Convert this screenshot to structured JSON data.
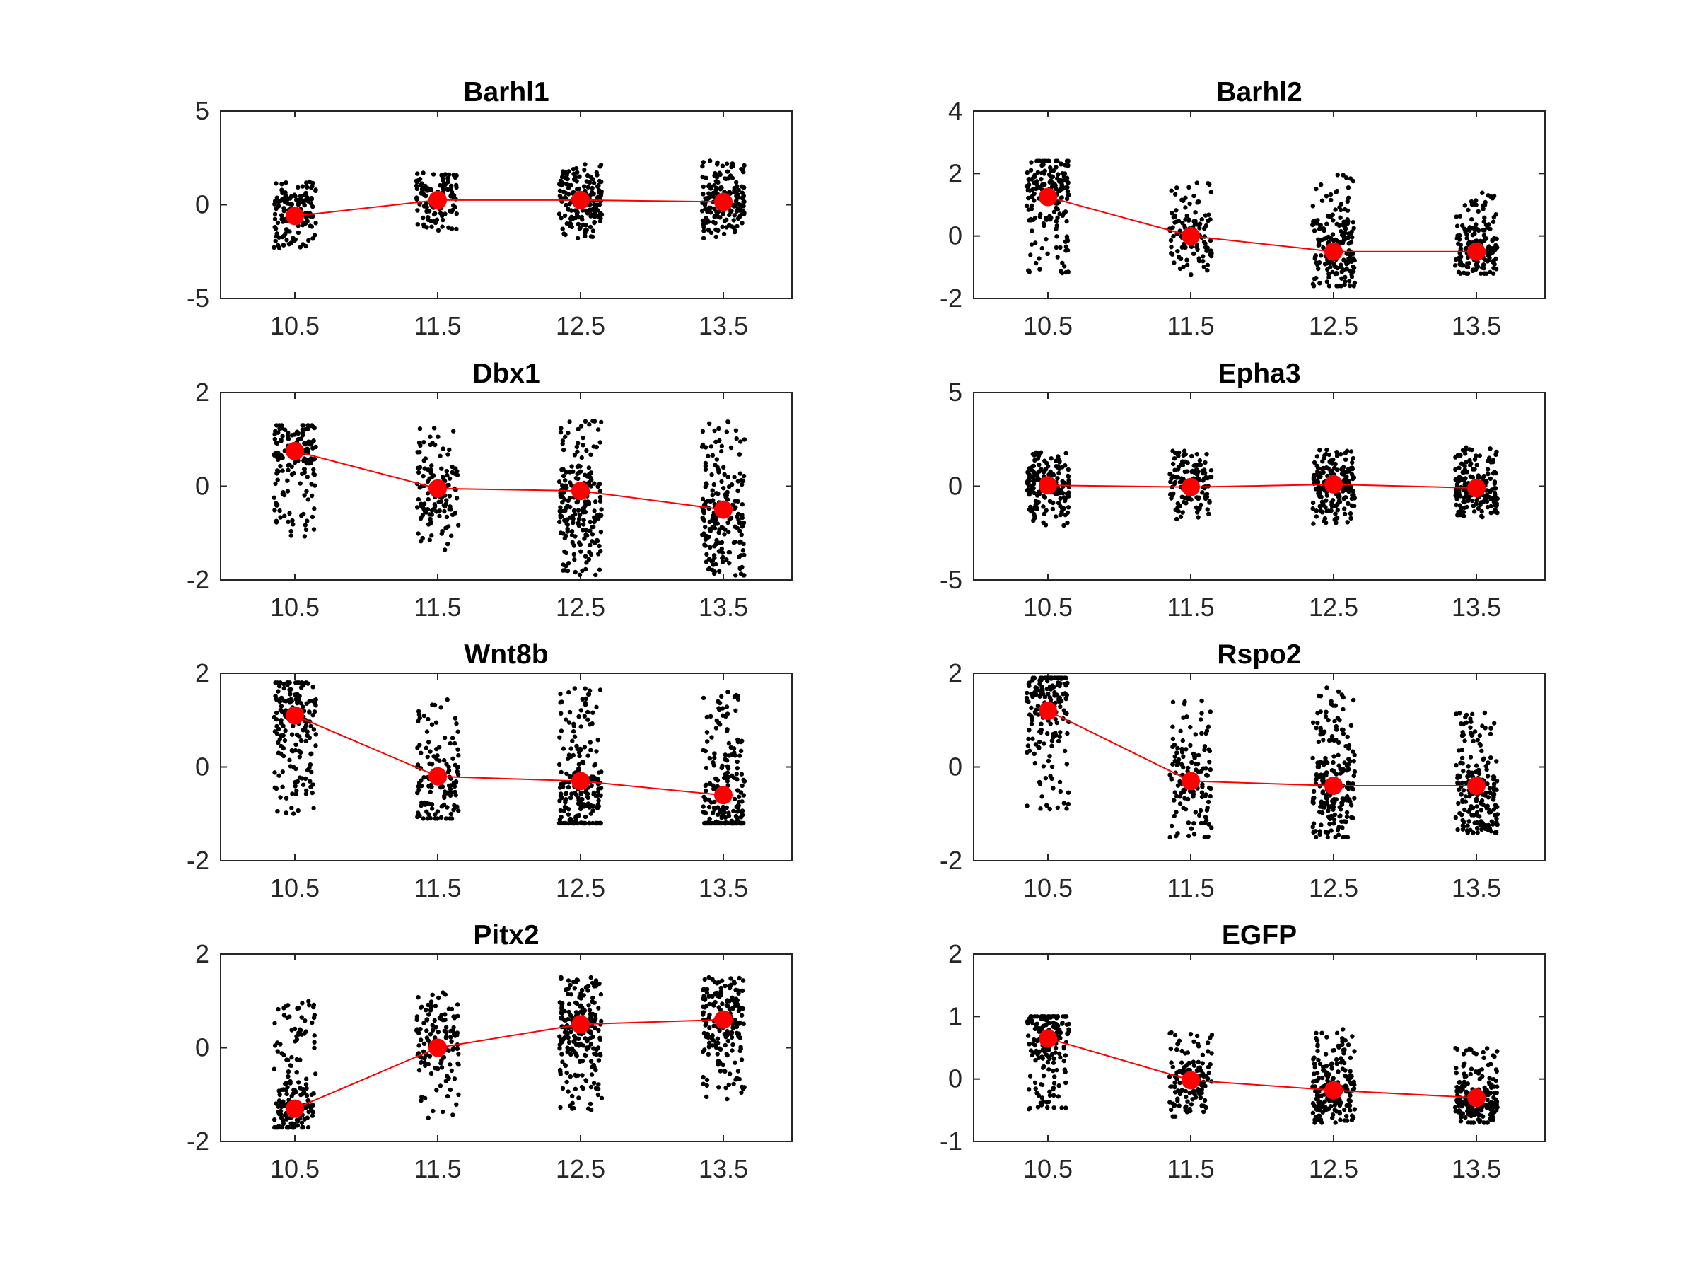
{
  "figure": {
    "grid": false,
    "colors": {
      "points": "#000000",
      "mean_marker": "#ff0000",
      "mean_line": "#ff0000",
      "axes": "#262626"
    }
  },
  "chart_data": [
    {
      "type": "scatter",
      "title": "Barhl1",
      "categories": [
        "10.5",
        "11.5",
        "12.5",
        "13.5"
      ],
      "ylim": [
        -5,
        5
      ],
      "yticks": [
        "-5",
        "0",
        "5"
      ],
      "means": [
        -0.6,
        0.25,
        0.25,
        0.15
      ],
      "spread": [
        {
          "min": -2.3,
          "max": 1.3,
          "center": -0.5,
          "n": 130
        },
        {
          "min": -1.4,
          "max": 1.9,
          "center": 0.4,
          "n": 110
        },
        {
          "min": -1.8,
          "max": 2.2,
          "center": 0.3,
          "n": 170
        },
        {
          "min": -1.8,
          "max": 2.4,
          "center": 0.3,
          "n": 170
        }
      ]
    },
    {
      "type": "scatter",
      "title": "Barhl2",
      "categories": [
        "10.5",
        "11.5",
        "12.5",
        "13.5"
      ],
      "ylim": [
        -2,
        4
      ],
      "yticks": [
        "-2",
        "0",
        "2",
        "4"
      ],
      "means": [
        1.25,
        0.0,
        -0.5,
        -0.5
      ],
      "spread": [
        {
          "min": -1.2,
          "max": 2.4,
          "center": 1.8,
          "n": 170
        },
        {
          "min": -1.3,
          "max": 1.7,
          "center": 0.0,
          "n": 110
        },
        {
          "min": -1.6,
          "max": 2.0,
          "center": -0.5,
          "n": 180
        },
        {
          "min": -1.2,
          "max": 1.4,
          "center": -0.6,
          "n": 160
        }
      ]
    },
    {
      "type": "scatter",
      "title": "Dbx1",
      "categories": [
        "10.5",
        "11.5",
        "12.5",
        "13.5"
      ],
      "ylim": [
        -2,
        2
      ],
      "yticks": [
        "-2",
        "0",
        "2"
      ],
      "means": [
        0.75,
        -0.05,
        -0.1,
        -0.5
      ],
      "spread": [
        {
          "min": -1.1,
          "max": 1.3,
          "center": 0.9,
          "n": 150
        },
        {
          "min": -1.4,
          "max": 1.3,
          "center": -0.2,
          "n": 120
        },
        {
          "min": -1.9,
          "max": 1.4,
          "center": -0.5,
          "n": 200
        },
        {
          "min": -1.9,
          "max": 1.4,
          "center": -0.8,
          "n": 190
        }
      ]
    },
    {
      "type": "scatter",
      "title": "Epha3",
      "categories": [
        "10.5",
        "11.5",
        "12.5",
        "13.5"
      ],
      "ylim": [
        -5,
        5
      ],
      "yticks": [
        "-5",
        "0",
        "5"
      ],
      "means": [
        0.05,
        -0.05,
        0.1,
        -0.1
      ],
      "spread": [
        {
          "min": -2.1,
          "max": 1.8,
          "center": 0.0,
          "n": 170
        },
        {
          "min": -1.8,
          "max": 1.9,
          "center": 0.0,
          "n": 130
        },
        {
          "min": -2.1,
          "max": 2.0,
          "center": 0.1,
          "n": 210
        },
        {
          "min": -1.7,
          "max": 2.1,
          "center": -0.1,
          "n": 180
        }
      ]
    },
    {
      "type": "scatter",
      "title": "Wnt8b",
      "categories": [
        "10.5",
        "11.5",
        "12.5",
        "13.5"
      ],
      "ylim": [
        -2,
        2
      ],
      "yticks": [
        "-2",
        "0",
        "2"
      ],
      "means": [
        1.1,
        -0.2,
        -0.3,
        -0.6
      ],
      "spread": [
        {
          "min": -1.0,
          "max": 1.8,
          "center": 1.3,
          "n": 170
        },
        {
          "min": -1.1,
          "max": 1.5,
          "center": -0.5,
          "n": 130
        },
        {
          "min": -1.2,
          "max": 1.7,
          "center": -0.7,
          "n": 200
        },
        {
          "min": -1.2,
          "max": 1.6,
          "center": -0.9,
          "n": 190
        }
      ]
    },
    {
      "type": "scatter",
      "title": "Rspo2",
      "categories": [
        "10.5",
        "11.5",
        "12.5",
        "13.5"
      ],
      "ylim": [
        -2,
        2
      ],
      "yticks": [
        "-2",
        "0",
        "2"
      ],
      "means": [
        1.2,
        -0.3,
        -0.4,
        -0.4
      ],
      "spread": [
        {
          "min": -1.0,
          "max": 1.9,
          "center": 1.6,
          "n": 180
        },
        {
          "min": -1.5,
          "max": 1.5,
          "center": -0.4,
          "n": 130
        },
        {
          "min": -1.5,
          "max": 1.7,
          "center": -0.5,
          "n": 210
        },
        {
          "min": -1.4,
          "max": 1.3,
          "center": -0.6,
          "n": 190
        }
      ]
    },
    {
      "type": "scatter",
      "title": "Pitx2",
      "categories": [
        "10.5",
        "11.5",
        "12.5",
        "13.5"
      ],
      "ylim": [
        -2,
        2
      ],
      "yticks": [
        "-2",
        "0",
        "2"
      ],
      "means": [
        -1.3,
        0.0,
        0.5,
        0.6
      ],
      "spread": [
        {
          "min": -1.7,
          "max": 1.0,
          "center": -1.4,
          "n": 170
        },
        {
          "min": -1.5,
          "max": 1.2,
          "center": 0.1,
          "n": 130
        },
        {
          "min": -1.4,
          "max": 1.5,
          "center": 0.6,
          "n": 220
        },
        {
          "min": -1.1,
          "max": 1.5,
          "center": 0.7,
          "n": 190
        }
      ]
    },
    {
      "type": "scatter",
      "title": "EGFP",
      "categories": [
        "10.5",
        "11.5",
        "12.5",
        "13.5"
      ],
      "ylim": [
        -1,
        2
      ],
      "yticks": [
        "-1",
        "0",
        "1",
        "2"
      ],
      "means": [
        0.65,
        -0.02,
        -0.18,
        -0.3
      ],
      "spread": [
        {
          "min": -0.5,
          "max": 1.0,
          "center": 0.8,
          "n": 170
        },
        {
          "min": -0.6,
          "max": 0.8,
          "center": -0.1,
          "n": 130
        },
        {
          "min": -0.7,
          "max": 0.8,
          "center": -0.3,
          "n": 200
        },
        {
          "min": -0.7,
          "max": 0.5,
          "center": -0.4,
          "n": 190
        }
      ]
    }
  ]
}
